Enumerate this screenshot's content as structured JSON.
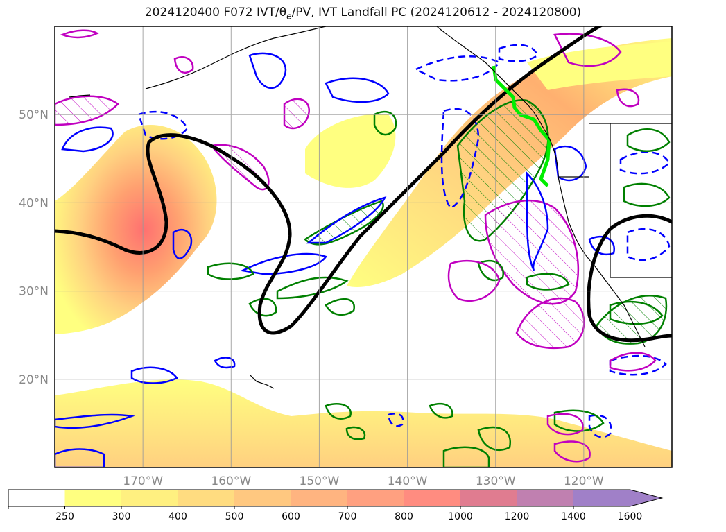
{
  "title": "2024120400 F072 IVT/θe/PV, IVT Landfall PC (2024120612 - 2024120800)",
  "map": {
    "projection": "PlateCarree",
    "lon_range": [
      -180,
      -110
    ],
    "lat_range": [
      10,
      60
    ],
    "lon_ticks": [
      {
        "lon": -170,
        "label": "170°W"
      },
      {
        "lon": -160,
        "label": "160°W"
      },
      {
        "lon": -150,
        "label": "150°W"
      },
      {
        "lon": -140,
        "label": "140°W"
      },
      {
        "lon": -130,
        "label": "130°W"
      },
      {
        "lon": -120,
        "label": "120°W"
      }
    ],
    "lat_ticks": [
      {
        "lat": 50,
        "label": "50°N"
      },
      {
        "lat": 40,
        "label": "40°N"
      },
      {
        "lat": 30,
        "label": "30°N"
      },
      {
        "lat": 20,
        "label": "20°N"
      }
    ],
    "grid": true
  },
  "colorbar": {
    "ticks": [
      "250",
      "300",
      "400",
      "500",
      "600",
      "700",
      "800",
      "1000",
      "1200",
      "1400",
      "1600"
    ],
    "colors": [
      "#ffffff",
      "#ffff80",
      "#fff080",
      "#ffdc80",
      "#ffc880",
      "#ffb480",
      "#ffa080",
      "#ff8c80",
      "#e07c90",
      "#c080b0",
      "#a080c8"
    ],
    "extend": "max"
  },
  "colors": {
    "ivt_fill_low": "#ffff80",
    "ivt_fill_high": "#ff7070",
    "theta_e_contour": "#000000",
    "pv_positive_contour": "#0000ff",
    "pv_contour_green": "#008000",
    "pv_contour_magenta": "#c000c0",
    "landfall_line": "#00ee00",
    "coastline": "#000000",
    "grid": "#999999"
  }
}
